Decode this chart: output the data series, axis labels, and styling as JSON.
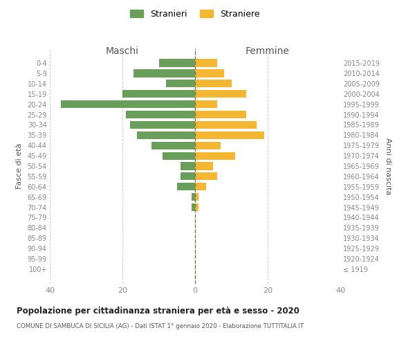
{
  "age_groups": [
    "100+",
    "95-99",
    "90-94",
    "85-89",
    "80-84",
    "75-79",
    "70-74",
    "65-69",
    "60-64",
    "55-59",
    "50-54",
    "45-49",
    "40-44",
    "35-39",
    "30-34",
    "25-29",
    "20-24",
    "15-19",
    "10-14",
    "5-9",
    "0-4"
  ],
  "birth_years": [
    "≤ 1919",
    "1920-1924",
    "1925-1929",
    "1930-1934",
    "1935-1939",
    "1940-1944",
    "1945-1949",
    "1950-1954",
    "1955-1959",
    "1960-1964",
    "1965-1969",
    "1970-1974",
    "1975-1979",
    "1980-1984",
    "1985-1989",
    "1990-1994",
    "1995-1999",
    "2000-2004",
    "2005-2009",
    "2010-2014",
    "2015-2019"
  ],
  "males": [
    0,
    0,
    0,
    0,
    0,
    0,
    1,
    1,
    5,
    4,
    4,
    9,
    12,
    16,
    18,
    19,
    37,
    20,
    8,
    17,
    10
  ],
  "females": [
    0,
    0,
    0,
    0,
    0,
    0,
    1,
    1,
    3,
    6,
    5,
    11,
    7,
    19,
    17,
    14,
    6,
    14,
    10,
    8,
    6
  ],
  "male_color": "#6a9e5b",
  "female_color": "#f5b731",
  "title": "Popolazione per cittadinanza straniera per età e sesso - 2020",
  "subtitle": "COMUNE DI SAMBUCA DI SICILIA (AG) - Dati ISTAT 1° gennaio 2020 - Elaborazione TUTTITALIA.IT",
  "left_label": "Maschi",
  "right_label": "Femmine",
  "ylabel_left": "Fasce di età",
  "ylabel_right": "Anni di nascita",
  "legend_male": "Stranieri",
  "legend_female": "Straniere",
  "xlim": 40,
  "background_color": "#ffffff",
  "grid_color": "#cccccc",
  "dashed_line_color": "#777755"
}
